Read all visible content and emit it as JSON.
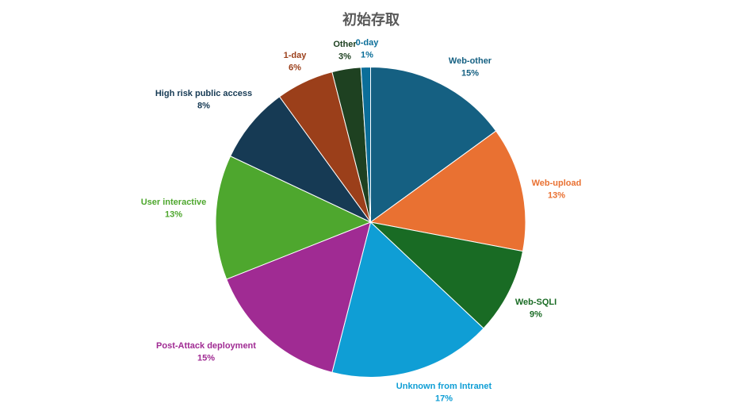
{
  "chart_data": {
    "type": "pie",
    "title": "初始存取",
    "categories": [
      "Web-other",
      "Web-upload",
      "Web-SQLI",
      "Unknown from Intranet",
      "Post-Attack deployment",
      "User interactive",
      "High risk public access",
      "1-day",
      "Other",
      "0-day"
    ],
    "values": [
      15,
      13,
      9,
      17,
      15,
      13,
      8,
      6,
      3,
      1
    ],
    "unit": "%",
    "colors": [
      "#156082",
      "#E97132",
      "#196B24",
      "#0F9ED5",
      "#A02B93",
      "#4EA72E",
      "#163A54",
      "#9B3F1A",
      "#1E4121",
      "#0B6E99"
    ],
    "legend": "none",
    "data_labels": "outside-end"
  }
}
